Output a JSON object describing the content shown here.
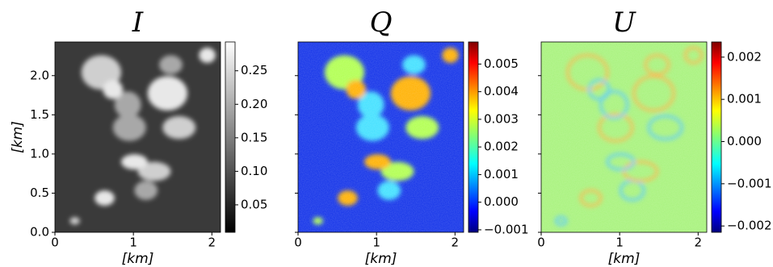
{
  "chart_data": [
    {
      "type": "heatmap",
      "title": "I",
      "xlabel": "[km]",
      "ylabel": "[km]",
      "colormap": "gray",
      "xlim": [
        0,
        2.11
      ],
      "xticks": [
        0,
        1,
        2
      ],
      "ylim": [
        0,
        2.43
      ],
      "yticks": [
        {
          "value": 0,
          "label": "0.0"
        },
        0.5,
        {
          "value": 1,
          "label": "1.0"
        },
        1.5,
        {
          "value": 2,
          "label": "2.0"
        }
      ],
      "clim": [
        0.009,
        0.293
      ],
      "cticks": [
        0.05,
        {
          "value": 0.1,
          "label": "0.10"
        },
        0.15,
        {
          "value": 0.2,
          "label": "0.20"
        },
        0.25
      ]
    },
    {
      "type": "heatmap",
      "title": "Q",
      "xlabel": "[km]",
      "colormap": "jet",
      "xlim": [
        0,
        2.11
      ],
      "xticks": [
        0,
        1,
        2
      ],
      "ylim": [
        0,
        2.43
      ],
      "yticks": [
        0,
        0.5,
        1,
        1.5,
        2
      ],
      "ytick_labels": false,
      "clim": [
        -0.00109,
        0.0058
      ],
      "cticks": [
        {
          "value": -0.001,
          "label": "−0.001"
        },
        {
          "value": 0,
          "label": "0.000"
        },
        0.001,
        0.002,
        0.003,
        0.004,
        0.005
      ]
    },
    {
      "type": "heatmap",
      "title": "U",
      "xlabel": "[km]",
      "colormap": "jet",
      "xlim": [
        0,
        2.11
      ],
      "xticks": [
        0,
        1,
        2
      ],
      "ylim": [
        0,
        2.43
      ],
      "yticks": [
        0,
        0.5,
        1,
        1.5,
        2
      ],
      "ytick_labels": false,
      "clim": [
        -0.00215,
        0.00236
      ],
      "cticks": [
        {
          "value": -0.002,
          "label": "−0.002"
        },
        {
          "value": -0.001,
          "label": "−0.001"
        },
        {
          "value": 0,
          "label": "0.000"
        },
        0.001,
        0.002
      ]
    }
  ]
}
